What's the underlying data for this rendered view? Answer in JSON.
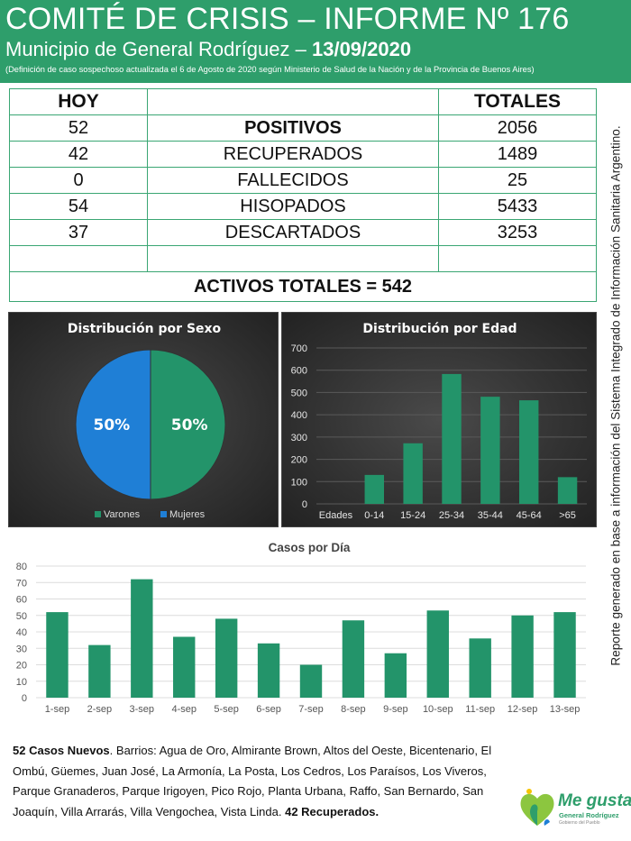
{
  "header": {
    "title": "COMITÉ DE CRISIS – INFORME Nº 176",
    "subtitle_prefix": "Municipio de General Rodríguez –",
    "date": "13/09/2020",
    "note": "(Definición de caso sospechoso actualizada el 6 de Agosto de 2020 según Ministerio de Salud de la Nación y de la Provincia de Buenos Aires)"
  },
  "table": {
    "col_hoy": "HOY",
    "col_totales": "TOTALES",
    "rows": [
      {
        "hoy": "52",
        "label": "POSITIVOS",
        "total": "2056"
      },
      {
        "hoy": "42",
        "label": "RECUPERADOS",
        "total": "1489"
      },
      {
        "hoy": "0",
        "label": "FALLECIDOS",
        "total": "25"
      },
      {
        "hoy": "54",
        "label": "HISOPADOS",
        "total": "5433"
      },
      {
        "hoy": "37",
        "label": "DESCARTADOS",
        "total": "3253"
      }
    ],
    "activos": "ACTIVOS TOTALES = 542"
  },
  "side_note": "Reporte generado en base a información del Sistema Integrado de Información Sanitaria Argentino.",
  "colors": {
    "green": "#2e9e6b",
    "bar_green": "#23946a",
    "blue": "#1f7fd6",
    "orange": "#ee8a1c"
  },
  "chart_data": [
    {
      "type": "pie",
      "title": "Distribución por Sexo",
      "labels": [
        "Varones",
        "Mujeres"
      ],
      "values": [
        50,
        50
      ],
      "value_labels": [
        "50%",
        "50%"
      ],
      "colors": [
        "#23946a",
        "#1f7fd6"
      ],
      "legend": "bottom"
    },
    {
      "type": "bar",
      "title": "Distribución por Edad",
      "xlabel": "Edades",
      "categories": [
        "0-14",
        "15-24",
        "25-34",
        "35-44",
        "45-64",
        ">65"
      ],
      "values": [
        130,
        272,
        583,
        481,
        465,
        120
      ],
      "ylim": [
        0,
        700
      ],
      "yticks": [
        "0",
        "100",
        "200",
        "300",
        "400",
        "500",
        "600",
        "700"
      ],
      "grid": true
    },
    {
      "type": "bar",
      "title": "Casos por Día",
      "categories": [
        "1-sep",
        "2-sep",
        "3-sep",
        "4-sep",
        "5-sep",
        "6-sep",
        "7-sep",
        "8-sep",
        "9-sep",
        "10-sep",
        "11-sep",
        "12-sep",
        "13-sep"
      ],
      "values": [
        52,
        32,
        72,
        37,
        48,
        33,
        20,
        47,
        27,
        53,
        36,
        50,
        52
      ],
      "ylim": [
        0,
        80
      ],
      "yticks": [
        "0",
        "10",
        "20",
        "30",
        "40",
        "50",
        "60",
        "70",
        "80"
      ],
      "grid": true
    }
  ],
  "footer": {
    "casos_nuevos": "52 Casos Nuevos",
    "barrios": ". Barrios: Agua de Oro,  Almirante Brown, Altos del Oeste, Bicentenario, El Ombú, Güemes, Juan José, La Armonía, La Posta, Los Cedros, Los Paraísos, Los Viveros, Parque Granaderos, Parque Irigoyen, Pico Rojo, Planta Urbana, Raffo, San Bernardo, San Joaquín, Villa Arrarás, Villa Vengochea, Vista Linda. ",
    "recuperados": "42 Recuperados."
  },
  "logo": {
    "main": "Me gusta",
    "sub": "General Rodríguez",
    "sub2": "Gobierno del Pueblo"
  }
}
